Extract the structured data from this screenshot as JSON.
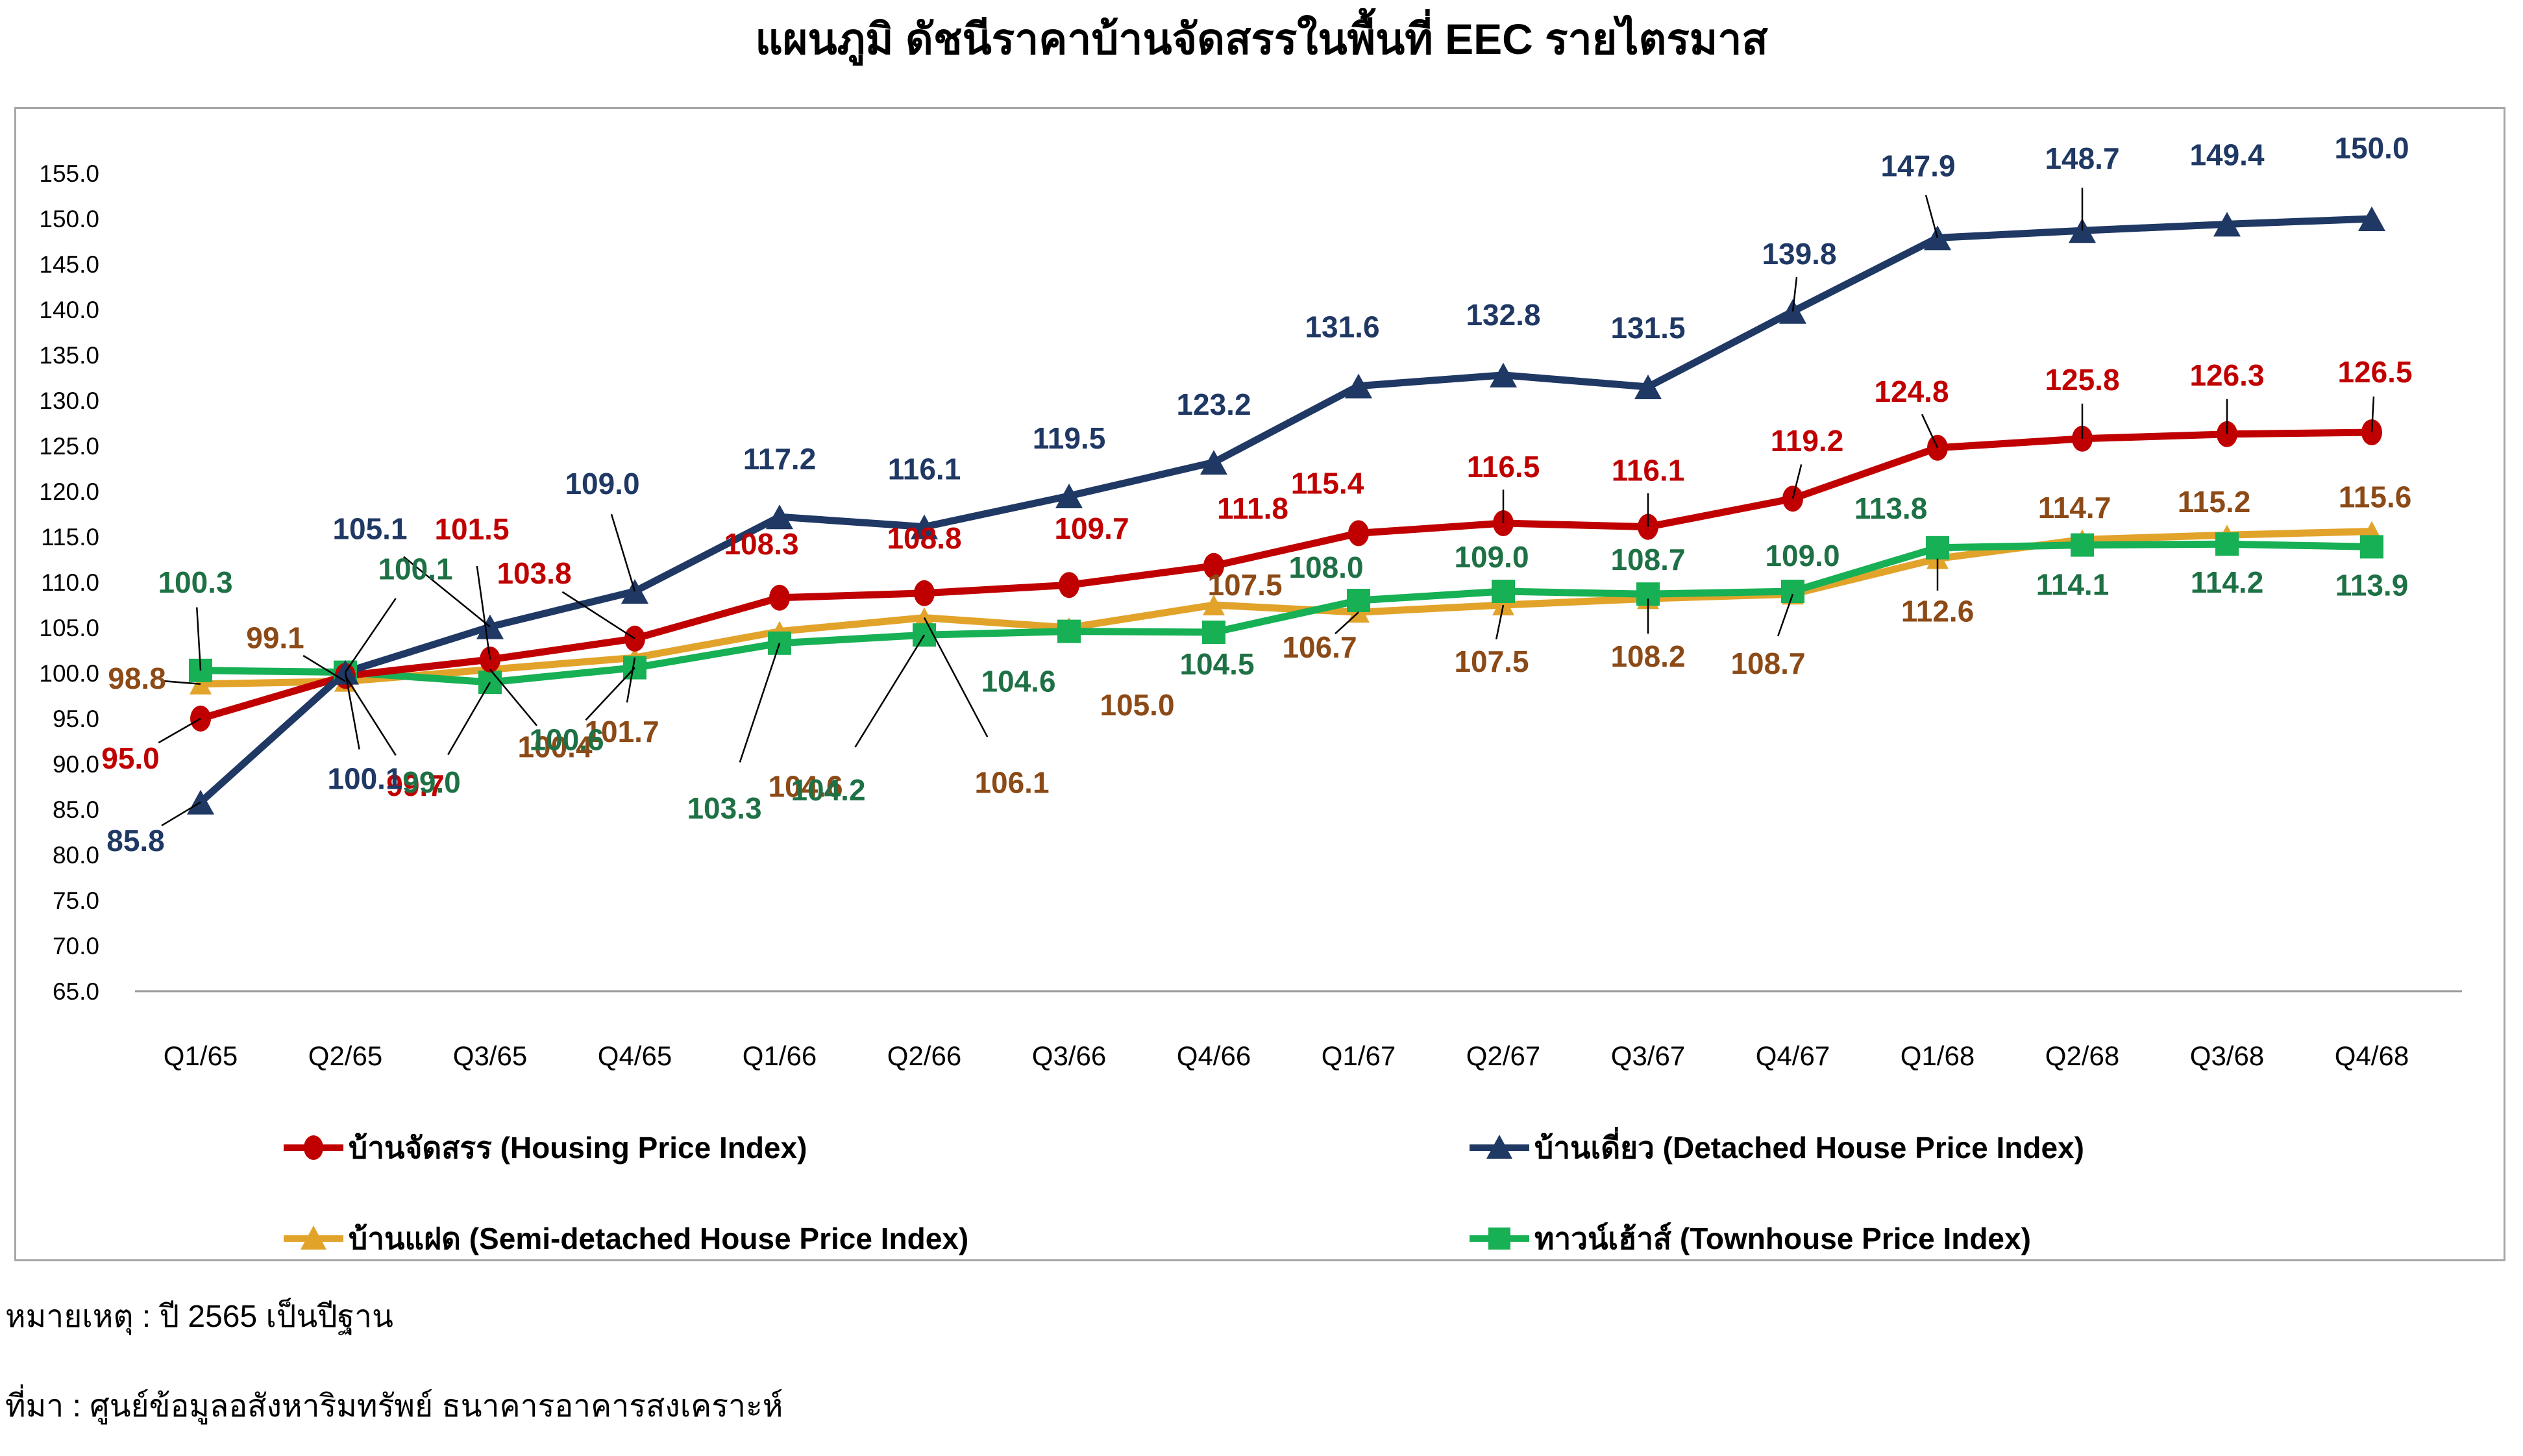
{
  "title": "แผนภูมิ ดัชนีราคาบ้านจัดสรรในพื้นที่ EEC รายไตรมาส",
  "notes": {
    "note": "หมายเหตุ : ปี 2565 เป็นปีฐาน",
    "source": "ที่มา : ศูนย์ข้อมูลอสังหาริมทรัพย์ ธนาคารอาคารสงเคราะห์"
  },
  "chart_data": {
    "type": "line",
    "title": "แผนภูมิ ดัชนีราคาบ้านจัดสรรในพื้นที่ EEC รายไตรมาส",
    "categories": [
      "Q1/65",
      "Q2/65",
      "Q3/65",
      "Q4/65",
      "Q1/66",
      "Q2/66",
      "Q3/66",
      "Q4/66",
      "Q1/67",
      "Q2/67",
      "Q3/67",
      "Q4/67",
      "Q1/68",
      "Q2/68",
      "Q3/68",
      "Q4/68"
    ],
    "ylim": [
      65.0,
      155.0
    ],
    "ytick_step": 5.0,
    "ytick_format": "one-decimal",
    "grid": false,
    "legend_position": "bottom",
    "axis_color": "#9a9a9a",
    "border_color": "#a6a6a6",
    "leader_line_color": "#000000",
    "series": [
      {
        "name": "บ้านจัดสรร (Housing Price Index)",
        "marker": "circle",
        "color": "#c00000",
        "label_color": "#c00000",
        "values": [
          95.0,
          99.7,
          101.5,
          103.8,
          108.3,
          108.8,
          109.7,
          111.8,
          115.4,
          116.5,
          116.1,
          119.2,
          124.8,
          125.8,
          126.3,
          126.5
        ]
      },
      {
        "name": "บ้านเดี่ยว (Detached House Price Index)",
        "marker": "triangle",
        "color": "#1f3864",
        "label_color": "#1f3864",
        "values": [
          85.8,
          100.1,
          105.1,
          109.0,
          117.2,
          116.1,
          119.5,
          123.2,
          131.6,
          132.8,
          131.5,
          139.8,
          147.9,
          148.7,
          149.4,
          150.0
        ]
      },
      {
        "name": "บ้านแฝด (Semi-detached House Price Index)",
        "marker": "triangle",
        "color": "#e2a32a",
        "label_color": "#8c4a17",
        "values": [
          98.8,
          99.1,
          100.4,
          101.7,
          104.6,
          106.1,
          105.0,
          107.5,
          106.7,
          107.5,
          108.2,
          108.7,
          112.6,
          114.7,
          115.2,
          115.6
        ]
      },
      {
        "name": "ทาวน์เฮ้าส์ (Townhouse Price Index)",
        "marker": "square",
        "color": "#17b055",
        "label_color": "#1e7145",
        "values": [
          100.3,
          100.1,
          99.0,
          100.6,
          103.3,
          104.2,
          104.6,
          104.5,
          108.0,
          109.0,
          108.7,
          109.0,
          113.8,
          114.1,
          114.2,
          113.9
        ]
      }
    ]
  }
}
